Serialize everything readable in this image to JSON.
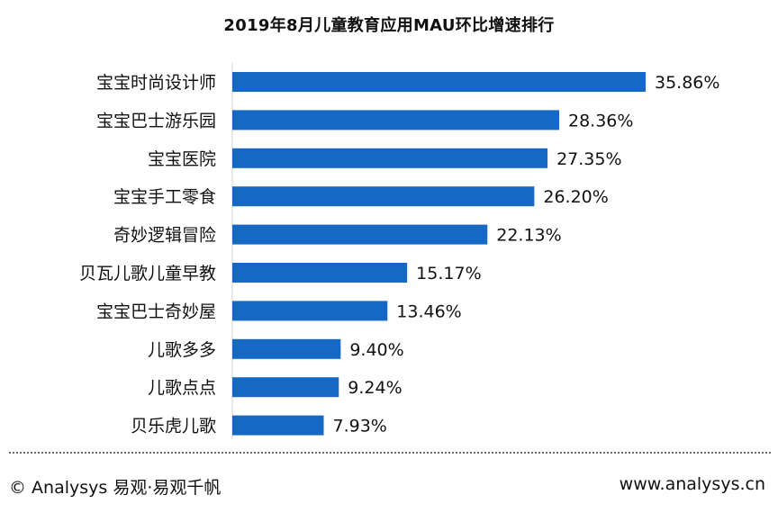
{
  "chart_data": {
    "type": "bar",
    "orientation": "horizontal",
    "title": "2019年8月儿童教育应用MAU环比增速排行",
    "xlabel": "",
    "ylabel": "",
    "unit": "%",
    "xlim": [
      0,
      40
    ],
    "categories": [
      "宝宝时尚设计师",
      "宝宝巴士游乐园",
      "宝宝医院",
      "宝宝手工零食",
      "奇妙逻辑冒险",
      "贝瓦儿歌儿童早教",
      "宝宝巴士奇妙屋",
      "儿歌多多",
      "儿歌点点",
      "贝乐虎儿歌"
    ],
    "values": [
      35.86,
      28.36,
      27.35,
      26.2,
      22.13,
      15.17,
      13.46,
      9.4,
      9.24,
      7.93
    ],
    "labels": [
      "35.86%",
      "28.36%",
      "27.35%",
      "26.20%",
      "22.13%",
      "15.17%",
      "13.46%",
      "9.40%",
      "9.24%",
      "7.93%"
    ],
    "bar_color": "#1568c4",
    "grid": false
  },
  "footer": {
    "copyright": "© Analysys 易观·易观千帆",
    "website": "www.analysys.cn"
  }
}
